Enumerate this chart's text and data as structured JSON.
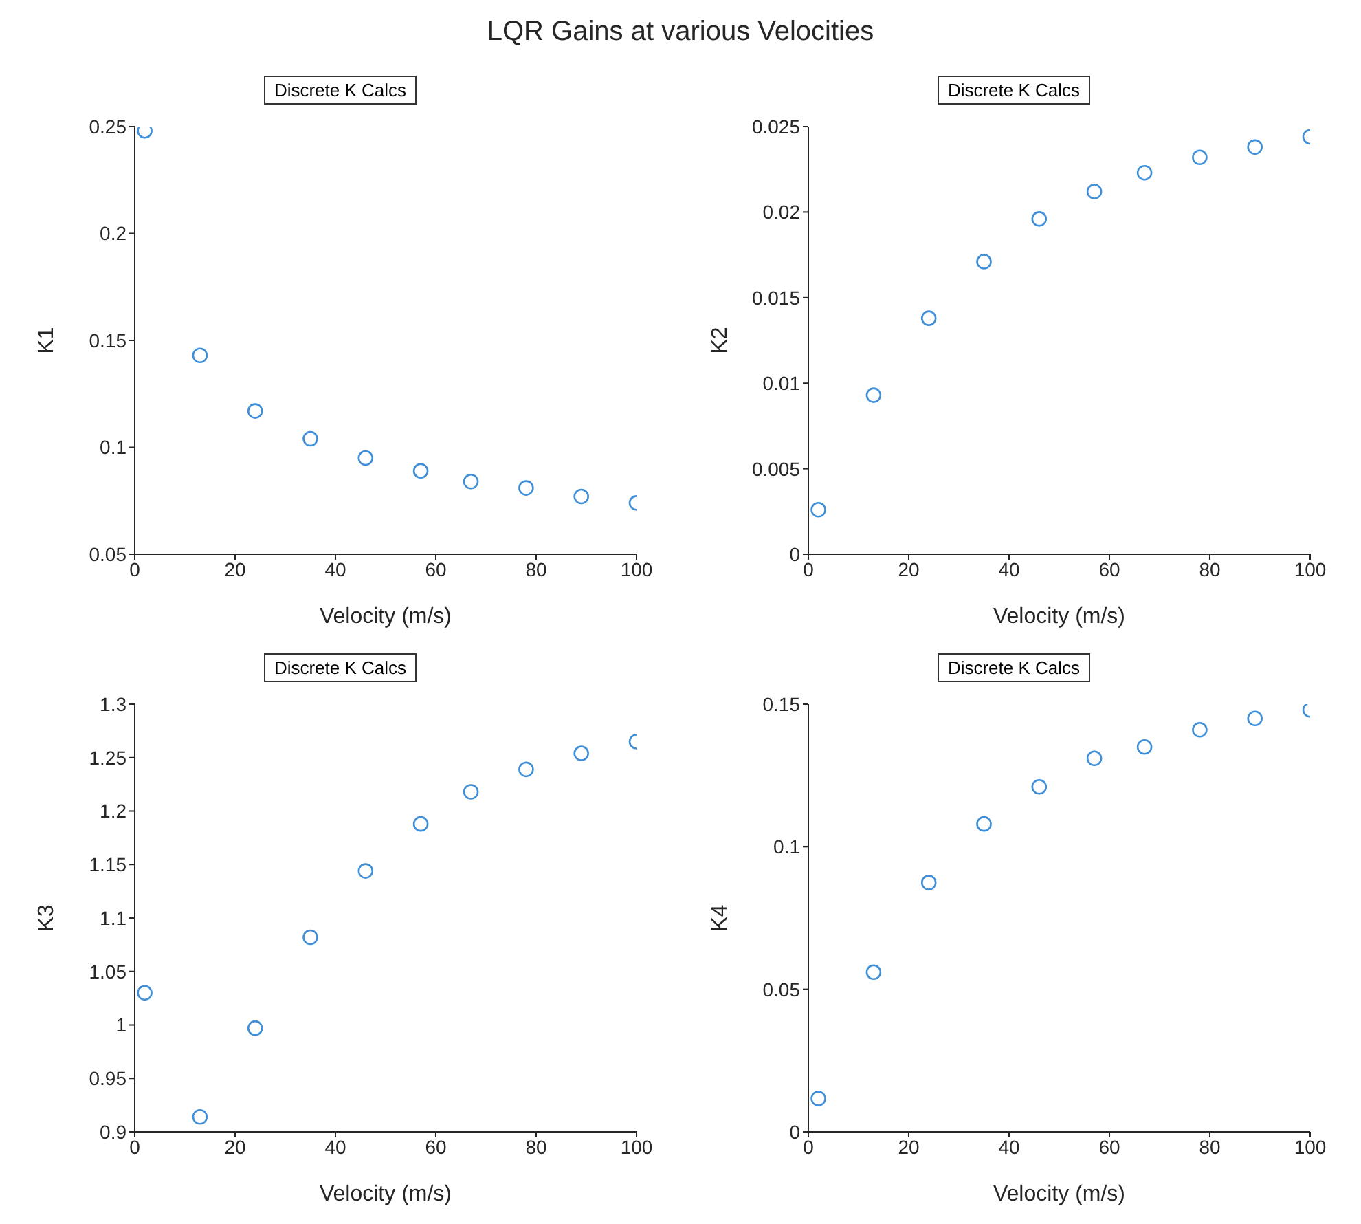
{
  "chart_data": [
    {
      "type": "scatter",
      "title": "LQR Gains at various Velocities",
      "xlabel": "Velocity (m/s)",
      "ylabel": "K1",
      "xlim": [
        0,
        100
      ],
      "xticks": [
        0,
        20,
        40,
        60,
        80,
        100
      ],
      "ylim": [
        0.05,
        0.25
      ],
      "yticks": [
        0.05,
        0.1,
        0.15,
        0.2,
        0.25
      ],
      "marker": "circle",
      "legend": "top",
      "x": [
        2,
        13,
        24,
        35,
        46,
        57,
        67,
        78,
        89,
        100
      ],
      "series": [
        {
          "name": "Discrete K Calcs",
          "color": "#3f8fd8",
          "values": [
            0.248,
            0.143,
            0.117,
            0.104,
            0.095,
            0.089,
            0.084,
            0.081,
            0.077,
            0.074
          ]
        }
      ]
    },
    {
      "type": "scatter",
      "xlabel": "Velocity (m/s)",
      "ylabel": "K2",
      "xlim": [
        0,
        100
      ],
      "xticks": [
        0,
        20,
        40,
        60,
        80,
        100
      ],
      "ylim": [
        0,
        0.025
      ],
      "yticks": [
        0,
        0.005,
        0.01,
        0.015,
        0.02,
        0.025
      ],
      "marker": "circle",
      "legend": "top",
      "x": [
        2,
        13,
        24,
        35,
        46,
        57,
        67,
        78,
        89,
        100
      ],
      "series": [
        {
          "name": "Discrete K Calcs",
          "color": "#3f8fd8",
          "values": [
            0.0026,
            0.0093,
            0.0138,
            0.0171,
            0.0196,
            0.0212,
            0.0223,
            0.0232,
            0.0238,
            0.0244
          ]
        }
      ]
    },
    {
      "type": "scatter",
      "xlabel": "Velocity (m/s)",
      "ylabel": "K3",
      "xlim": [
        0,
        100
      ],
      "xticks": [
        0,
        20,
        40,
        60,
        80,
        100
      ],
      "ylim": [
        0.9,
        1.3
      ],
      "yticks": [
        0.9,
        0.95,
        1,
        1.05,
        1.1,
        1.15,
        1.2,
        1.25,
        1.3
      ],
      "marker": "circle",
      "legend": "top",
      "x": [
        2,
        13,
        24,
        35,
        46,
        57,
        67,
        78,
        89,
        100
      ],
      "series": [
        {
          "name": "Discrete K Calcs",
          "color": "#3f8fd8",
          "values": [
            1.03,
            0.914,
            0.997,
            1.082,
            1.144,
            1.188,
            1.218,
            1.239,
            1.254,
            1.265
          ]
        }
      ]
    },
    {
      "type": "scatter",
      "xlabel": "Velocity (m/s)",
      "ylabel": "K4",
      "xlim": [
        0,
        100
      ],
      "xticks": [
        0,
        20,
        40,
        60,
        80,
        100
      ],
      "ylim": [
        0,
        0.15
      ],
      "yticks": [
        0,
        0.05,
        0.1,
        0.15
      ],
      "marker": "circle",
      "legend": "top",
      "x": [
        2,
        13,
        24,
        35,
        46,
        57,
        67,
        78,
        89,
        100
      ],
      "series": [
        {
          "name": "Discrete K Calcs",
          "color": "#3f8fd8",
          "values": [
            0.0117,
            0.056,
            0.0874,
            0.108,
            0.121,
            0.131,
            0.135,
            0.141,
            0.145,
            0.148
          ]
        }
      ]
    }
  ]
}
